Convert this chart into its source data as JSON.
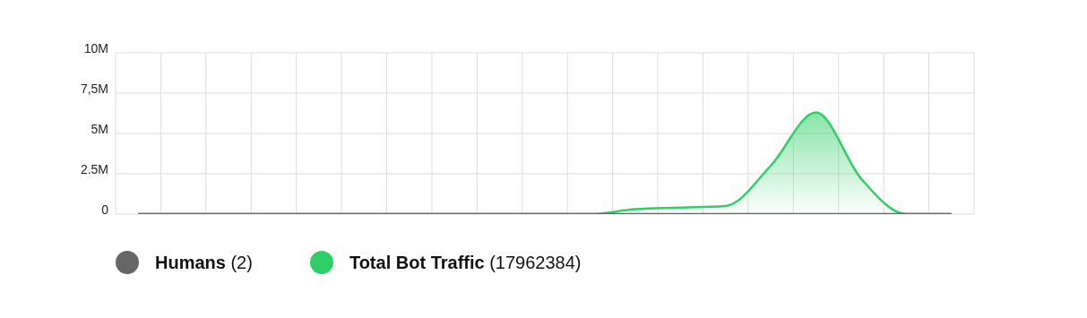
{
  "chart_data": {
    "type": "area",
    "categories": [
      null,
      null,
      null,
      null,
      null,
      null,
      null,
      null,
      null,
      null,
      null,
      null,
      null,
      null,
      null,
      null,
      null,
      null,
      null
    ],
    "series": [
      {
        "name": "Humans (2)",
        "type": "line",
        "color": "#666666",
        "values": [
          0,
          0,
          0,
          0,
          0,
          0,
          0,
          0,
          0,
          0,
          0,
          0,
          0,
          0,
          0,
          0,
          0,
          0,
          0
        ]
      },
      {
        "name": "Total Bot Traffic (17962384)",
        "color": "#2ecf66",
        "values": [
          0,
          0,
          0,
          0,
          0,
          0,
          0,
          0,
          0,
          0,
          0,
          300000.0,
          400000.0,
          500000.0,
          3000000.0,
          6300000.0,
          2200000.0,
          0,
          0
        ]
      }
    ],
    "ylim": [
      0,
      10000000
    ],
    "yticks": [
      0,
      {
        "value": 2500000,
        "label": "2.5M"
      },
      {
        "value": 5000000,
        "label": "5M"
      },
      {
        "value": 7500000,
        "label": "7,5M"
      },
      {
        "value": 10000000,
        "label": "10M"
      }
    ],
    "tick_labels": "y",
    "grid": true,
    "legend": "bottom left"
  }
}
